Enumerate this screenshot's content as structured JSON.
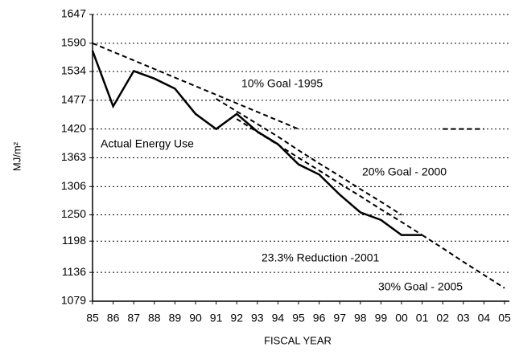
{
  "chart_data": {
    "type": "line",
    "y_label": "MJ/m²",
    "x_label": "FISCAL YEAR",
    "categories": [
      "85",
      "86",
      "87",
      "88",
      "89",
      "90",
      "91",
      "92",
      "93",
      "94",
      "95",
      "96",
      "97",
      "98",
      "99",
      "00",
      "01",
      "02",
      "03",
      "04",
      "05"
    ],
    "series": [
      {
        "name": "Actual Energy Use",
        "color": "#000000",
        "dashed": false,
        "values": [
          1575,
          1465,
          1535,
          1520,
          1500,
          1450,
          1420,
          1450,
          1415,
          1390,
          1350,
          1330,
          1290,
          1255,
          1240,
          1210,
          1210,
          null,
          null,
          null,
          null
        ]
      },
      {
        "name": "10% Goal -1995",
        "color": "#000000",
        "dashed": true,
        "values": [
          1590,
          1573,
          1556,
          1539,
          1522,
          1505,
          1488,
          1471,
          1454,
          1437,
          1420,
          null,
          null,
          null,
          null,
          null,
          null,
          1420,
          1420,
          1420,
          null
        ]
      },
      {
        "name": "20% Goal - 2000",
        "color": "#000000",
        "dashed": true,
        "values": [
          null,
          null,
          null,
          null,
          null,
          null,
          1480,
          1455,
          1430,
          1405,
          1378,
          1352,
          1327,
          1301,
          1276,
          1250,
          null,
          null,
          null,
          null,
          null
        ]
      },
      {
        "name": "23.3% Reduction -2001",
        "color": "#000000",
        "dashed": true,
        "values": [
          null,
          null,
          null,
          null,
          null,
          null,
          null,
          1440,
          1414,
          1389,
          1363,
          1338,
          1312,
          1287,
          1261,
          1236,
          1210,
          null,
          null,
          null,
          null
        ]
      },
      {
        "name": "30% Goal - 2005",
        "color": "#000000",
        "dashed": true,
        "values": [
          null,
          null,
          null,
          null,
          null,
          null,
          null,
          null,
          null,
          null,
          null,
          null,
          null,
          null,
          null,
          null,
          1210,
          1184,
          1157,
          1131,
          1105
        ]
      }
    ],
    "ylim": [
      1079,
      1647
    ],
    "yticks": [
      1079,
      1136,
      1198,
      1250,
      1306,
      1363,
      1420,
      1477,
      1534,
      1590,
      1647
    ],
    "grid": true
  }
}
